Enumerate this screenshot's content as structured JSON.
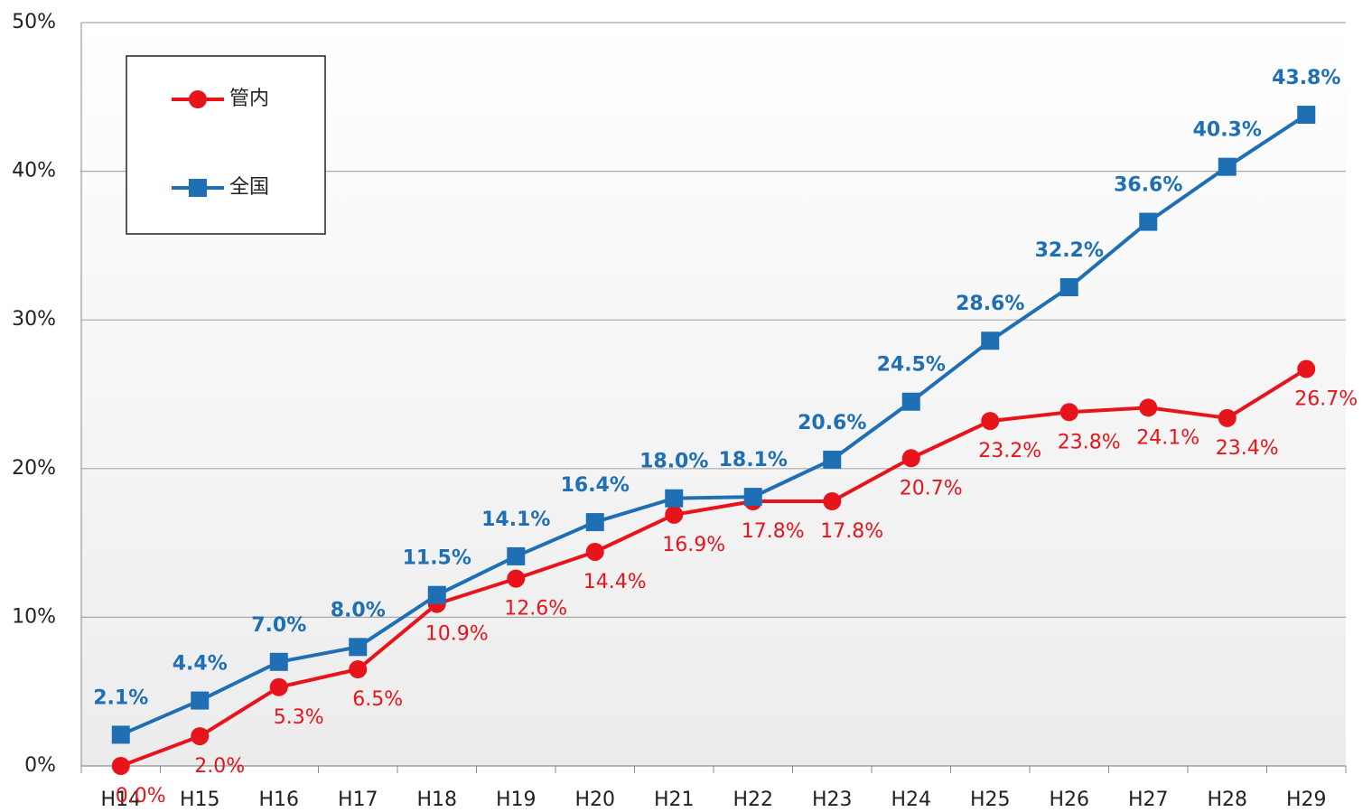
{
  "chart_data": {
    "type": "line",
    "categories": [
      "H14",
      "H15",
      "H16",
      "H17",
      "H18",
      "H19",
      "H20",
      "H21",
      "H22",
      "H23",
      "H24",
      "H25",
      "H26",
      "H27",
      "H28",
      "H29"
    ],
    "series": [
      {
        "name": "管内",
        "color": "#e8141b",
        "marker": "circle",
        "values": [
          0.0,
          2.0,
          5.3,
          6.5,
          10.9,
          12.6,
          14.4,
          16.9,
          17.8,
          17.8,
          20.7,
          23.2,
          23.8,
          24.1,
          23.4,
          26.7
        ],
        "value_labels": [
          "0.0%",
          "2.0%",
          "5.3%",
          "6.5%",
          "10.9%",
          "12.6%",
          "14.4%",
          "16.9%",
          "17.8%",
          "17.8%",
          "20.7%",
          "23.2%",
          "23.8%",
          "24.1%",
          "23.4%",
          "26.7%"
        ]
      },
      {
        "name": "全国",
        "color": "#1f6fb5",
        "marker": "square",
        "values": [
          2.1,
          4.4,
          7.0,
          8.0,
          11.5,
          14.1,
          16.4,
          18.0,
          18.1,
          20.6,
          24.5,
          28.6,
          32.2,
          36.6,
          40.3,
          43.8
        ],
        "value_labels": [
          "2.1%",
          "4.4%",
          "7.0%",
          "8.0%",
          "11.5%",
          "14.1%",
          "16.4%",
          "18.0%",
          "18.1%",
          "20.6%",
          "24.5%",
          "28.6%",
          "32.2%",
          "36.6%",
          "40.3%",
          "43.8%"
        ]
      }
    ],
    "ylim": [
      0,
      50
    ],
    "yticks": [
      {
        "value": 0,
        "label": "0%"
      },
      {
        "value": 10,
        "label": "10%"
      },
      {
        "value": 20,
        "label": "20%"
      },
      {
        "value": 30,
        "label": "30%"
      },
      {
        "value": 40,
        "label": "40%"
      },
      {
        "value": 50,
        "label": "50%"
      }
    ],
    "grid": true,
    "legend": "upper left"
  }
}
